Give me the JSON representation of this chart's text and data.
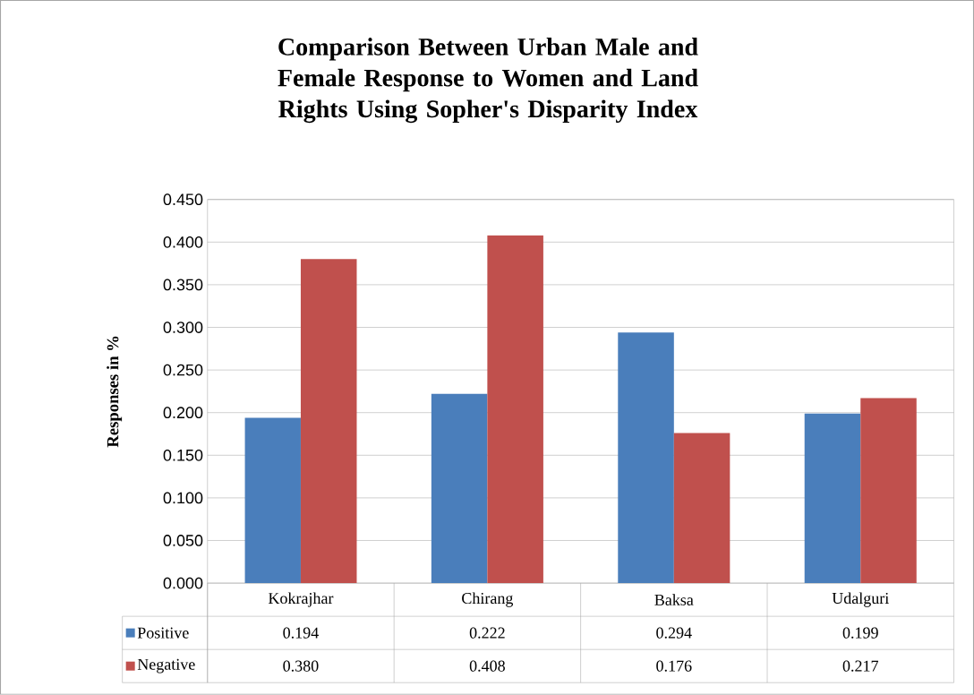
{
  "chart_data": {
    "type": "bar",
    "title": "Comparison Between Urban Male and Female Response to Women and Land Rights Using Sopher's Disparity Index",
    "ylabel": "Responses in %",
    "categories": [
      "Kokrajhar",
      "Chirang",
      "Baksa",
      "Udalguri"
    ],
    "series": [
      {
        "name": "Positive",
        "color": "#4a7ebb",
        "values": [
          0.194,
          0.222,
          0.294,
          0.199
        ],
        "value_labels": [
          "0.194",
          "0.222",
          "0.294",
          "0.199"
        ]
      },
      {
        "name": "Negative",
        "color": "#c0504d",
        "values": [
          0.38,
          0.408,
          0.176,
          0.217
        ],
        "value_labels": [
          "0.380",
          "0.408",
          "0.176",
          "0.217"
        ]
      }
    ],
    "ylim": [
      0,
      0.45
    ],
    "yticks": [
      {
        "value": 0,
        "label": "0.000"
      },
      {
        "value": 0.05,
        "label": "0.050"
      },
      {
        "value": 0.1,
        "label": "0.100"
      },
      {
        "value": 0.15,
        "label": "0.150"
      },
      {
        "value": 0.2,
        "label": "0.200"
      },
      {
        "value": 0.25,
        "label": "0.250"
      },
      {
        "value": 0.3,
        "label": "0.300"
      },
      {
        "value": 0.35,
        "label": "0.350"
      },
      {
        "value": 0.4,
        "label": "0.400"
      },
      {
        "value": 0.45,
        "label": "0.450"
      }
    ],
    "grid": "y",
    "legend": "bottom"
  }
}
